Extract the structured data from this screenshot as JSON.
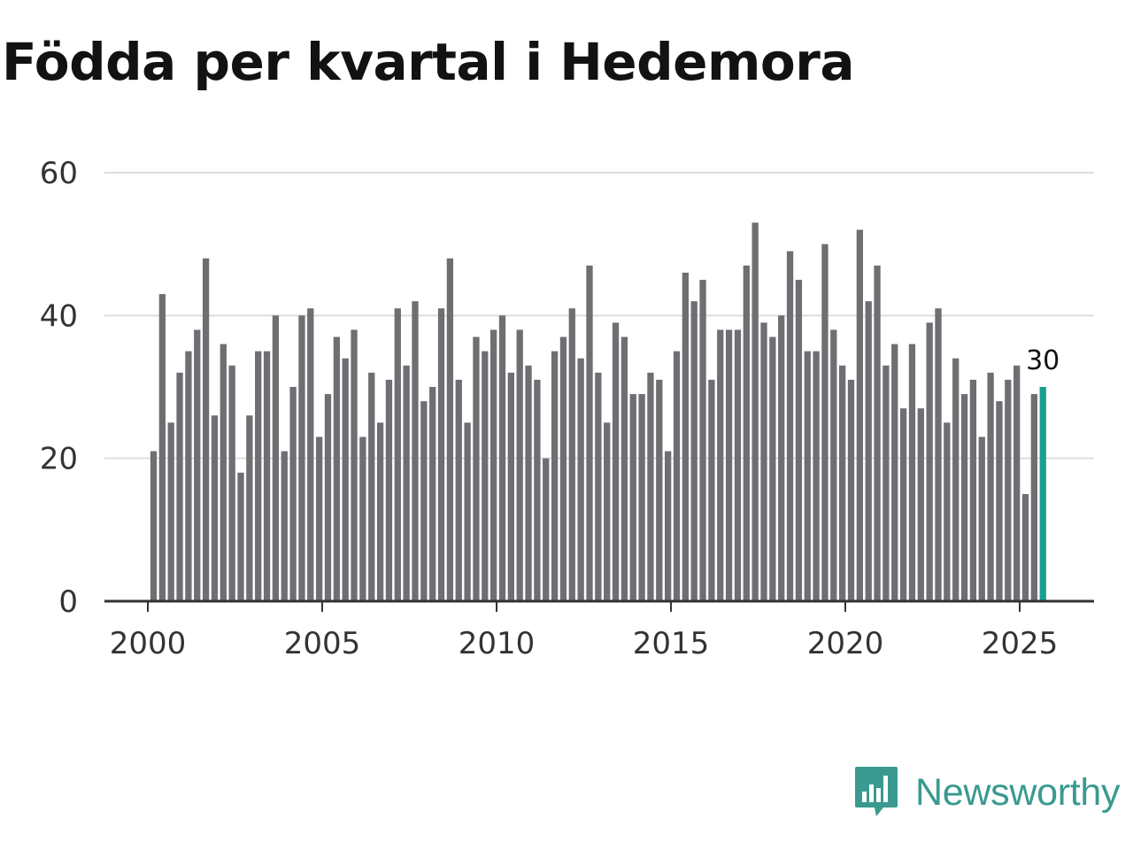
{
  "title": "Födda per kvartal i Hedemora",
  "brand": {
    "name": "Newsworthy",
    "icon": "newsworthy-logo-icon",
    "color": "#3a9a8f"
  },
  "colors": {
    "bar": "#6f6e73",
    "highlight": "#1a9e92",
    "grid": "#dddddd",
    "axis": "#333333"
  },
  "chart_data": {
    "type": "bar",
    "title": "Födda per kvartal i Hedemora",
    "xlabel": "",
    "ylabel": "",
    "ylim": [
      0,
      60
    ],
    "yticks": [
      0,
      20,
      40,
      60
    ],
    "xticks": [
      "2000",
      "2005",
      "2010",
      "2015",
      "2020",
      "2025"
    ],
    "x_start_year": 2000,
    "x_end_year": 2025,
    "grid": true,
    "highlight_last": true,
    "last_value_label": "30",
    "categories": [
      "2000 Q1",
      "2000 Q2",
      "2000 Q3",
      "2000 Q4",
      "2001 Q1",
      "2001 Q2",
      "2001 Q3",
      "2001 Q4",
      "2002 Q1",
      "2002 Q2",
      "2002 Q3",
      "2002 Q4",
      "2003 Q1",
      "2003 Q2",
      "2003 Q3",
      "2003 Q4",
      "2004 Q1",
      "2004 Q2",
      "2004 Q3",
      "2004 Q4",
      "2005 Q1",
      "2005 Q2",
      "2005 Q3",
      "2005 Q4",
      "2006 Q1",
      "2006 Q2",
      "2006 Q3",
      "2006 Q4",
      "2007 Q1",
      "2007 Q2",
      "2007 Q3",
      "2007 Q4",
      "2008 Q1",
      "2008 Q2",
      "2008 Q3",
      "2008 Q4",
      "2009 Q1",
      "2009 Q2",
      "2009 Q3",
      "2009 Q4",
      "2010 Q1",
      "2010 Q2",
      "2010 Q3",
      "2010 Q4",
      "2011 Q1",
      "2011 Q2",
      "2011 Q3",
      "2011 Q4",
      "2012 Q1",
      "2012 Q2",
      "2012 Q3",
      "2012 Q4",
      "2013 Q1",
      "2013 Q2",
      "2013 Q3",
      "2013 Q4",
      "2014 Q1",
      "2014 Q2",
      "2014 Q3",
      "2014 Q4",
      "2015 Q1",
      "2015 Q2",
      "2015 Q3",
      "2015 Q4",
      "2016 Q1",
      "2016 Q2",
      "2016 Q3",
      "2016 Q4",
      "2017 Q1",
      "2017 Q2",
      "2017 Q3",
      "2017 Q4",
      "2018 Q1",
      "2018 Q2",
      "2018 Q3",
      "2018 Q4",
      "2019 Q1",
      "2019 Q2",
      "2019 Q3",
      "2019 Q4",
      "2020 Q1",
      "2020 Q2",
      "2020 Q3",
      "2020 Q4",
      "2021 Q1",
      "2021 Q2",
      "2021 Q3",
      "2021 Q4",
      "2022 Q1",
      "2022 Q2",
      "2022 Q3",
      "2022 Q4",
      "2023 Q1",
      "2023 Q2",
      "2023 Q3",
      "2023 Q4",
      "2024 Q1",
      "2024 Q2",
      "2024 Q3",
      "2024 Q4",
      "2025 Q1",
      "2025 Q2",
      "2025 Q3"
    ],
    "values": [
      21,
      43,
      25,
      32,
      35,
      38,
      48,
      26,
      36,
      33,
      18,
      26,
      35,
      35,
      40,
      21,
      30,
      40,
      41,
      23,
      29,
      37,
      34,
      38,
      23,
      32,
      25,
      31,
      41,
      33,
      42,
      28,
      30,
      41,
      48,
      31,
      25,
      37,
      35,
      38,
      40,
      32,
      38,
      33,
      31,
      20,
      35,
      37,
      41,
      34,
      47,
      32,
      25,
      39,
      37,
      29,
      29,
      32,
      31,
      21,
      35,
      46,
      42,
      45,
      31,
      38,
      38,
      38,
      47,
      53,
      39,
      37,
      40,
      49,
      45,
      35,
      35,
      50,
      38,
      33,
      31,
      52,
      42,
      47,
      33,
      36,
      27,
      36,
      27,
      39,
      41,
      25,
      34,
      29,
      31,
      23,
      32,
      28,
      31,
      33,
      15,
      29,
      30
    ]
  }
}
